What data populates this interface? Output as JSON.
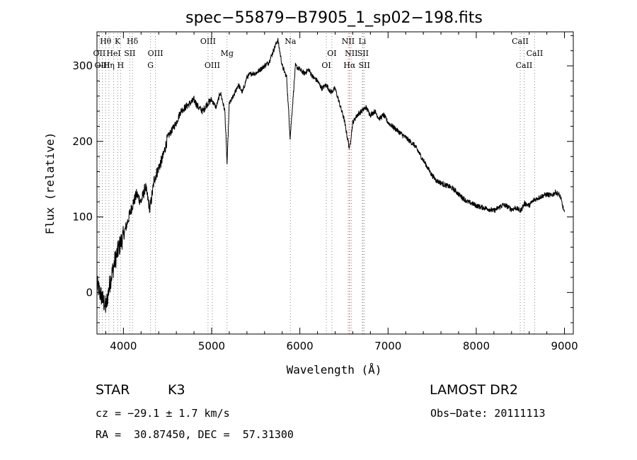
{
  "chart_data": {
    "type": "line",
    "title": "spec−55879−B7905_1_sp02−198.fits",
    "xlabel": "Wavelength (Å)",
    "ylabel": "Flux (relative)",
    "xlim": [
      3700,
      9100
    ],
    "ylim": [
      -55,
      345
    ],
    "x_ticks": [
      4000,
      5000,
      6000,
      7000,
      8000,
      9000
    ],
    "y_ticks": [
      0,
      100,
      200,
      300
    ],
    "grid": false,
    "series": [
      {
        "color": "#000000",
        "x": [
          3700,
          3750,
          3800,
          3850,
          3900,
          3950,
          4000,
          4050,
          4100,
          4150,
          4200,
          4250,
          4300,
          4350,
          4400,
          4450,
          4500,
          4550,
          4600,
          4650,
          4700,
          4750,
          4800,
          4850,
          4900,
          4950,
          5000,
          5050,
          5100,
          5150,
          5175,
          5200,
          5250,
          5300,
          5350,
          5400,
          5450,
          5500,
          5550,
          5600,
          5650,
          5700,
          5750,
          5800,
          5850,
          5890,
          5950,
          6000,
          6050,
          6100,
          6150,
          6200,
          6250,
          6300,
          6350,
          6400,
          6450,
          6500,
          6563,
          6600,
          6650,
          6700,
          6750,
          6800,
          6850,
          6900,
          6950,
          7000,
          7050,
          7100,
          7150,
          7200,
          7250,
          7300,
          7350,
          7400,
          7450,
          7500,
          7550,
          7600,
          7650,
          7700,
          7750,
          7800,
          7850,
          7900,
          7950,
          8000,
          8050,
          8100,
          8150,
          8200,
          8250,
          8300,
          8350,
          8400,
          8450,
          8500,
          8550,
          8600,
          8650,
          8700,
          8750,
          8800,
          8850,
          8900,
          8950,
          9000
        ],
        "y": [
          10,
          -5,
          -20,
          15,
          40,
          60,
          75,
          95,
          115,
          130,
          120,
          140,
          110,
          150,
          165,
          180,
          205,
          215,
          225,
          240,
          245,
          250,
          255,
          245,
          240,
          250,
          255,
          245,
          265,
          240,
          170,
          250,
          260,
          275,
          265,
          285,
          290,
          290,
          295,
          300,
          305,
          320,
          335,
          300,
          285,
          205,
          300,
          295,
          290,
          295,
          285,
          280,
          270,
          275,
          265,
          270,
          250,
          230,
          190,
          225,
          235,
          240,
          245,
          235,
          240,
          230,
          235,
          225,
          220,
          215,
          210,
          205,
          200,
          195,
          185,
          175,
          165,
          155,
          148,
          145,
          142,
          140,
          136,
          130,
          125,
          120,
          118,
          115,
          113,
          112,
          110,
          108,
          112,
          116,
          114,
          110,
          112,
          108,
          118,
          115,
          122,
          125,
          128,
          130,
          128,
          133,
          128,
          105
        ]
      }
    ],
    "annotations": [
      {
        "label": "Hθ",
        "x": 3798,
        "row": 1,
        "color": "#000000"
      },
      {
        "label": "K",
        "x": 3934,
        "row": 1,
        "color": "#000000"
      },
      {
        "label": "Hδ",
        "x": 4102,
        "row": 1,
        "color": "#000000"
      },
      {
        "label": "OII",
        "x": 3727,
        "row": 2,
        "color": "#000000"
      },
      {
        "label": "HeI",
        "x": 3889,
        "row": 2,
        "color": "#000000"
      },
      {
        "label": "SII",
        "x": 4072,
        "row": 2,
        "color": "#000000"
      },
      {
        "label": "OIII",
        "x": 4363,
        "row": 2,
        "color": "#000000"
      },
      {
        "label": "OIII",
        "x": 3760,
        "row": 3,
        "color": "#000000"
      },
      {
        "label": "Hη",
        "x": 3835,
        "row": 3,
        "color": "#000000"
      },
      {
        "label": "H",
        "x": 3968,
        "row": 3,
        "color": "#000000"
      },
      {
        "label": "G",
        "x": 4307,
        "row": 3,
        "color": "#000000"
      },
      {
        "label": "OIII",
        "x": 4959,
        "row": 1,
        "color": "#000000"
      },
      {
        "label": "Mg",
        "x": 5175,
        "row": 2,
        "color": "#000000"
      },
      {
        "label": "OIII",
        "x": 5007,
        "row": 3,
        "color": "#000000"
      },
      {
        "label": "Na",
        "x": 5893,
        "row": 1,
        "color": "#000000"
      },
      {
        "label": "OI",
        "x": 6363,
        "row": 2,
        "color": "#000000"
      },
      {
        "label": "OI",
        "x": 6300,
        "row": 3,
        "color": "#000000"
      },
      {
        "label": "NII",
        "x": 6548,
        "row": 1,
        "color": "#000000"
      },
      {
        "label": "Li",
        "x": 6708,
        "row": 1,
        "color": "#000000"
      },
      {
        "label": "NII",
        "x": 6583,
        "row": 2,
        "color": "#000000"
      },
      {
        "label": "SII",
        "x": 6716,
        "row": 2,
        "color": "#000000"
      },
      {
        "label": "Hα",
        "x": 6563,
        "row": 3,
        "color": "#cc0000"
      },
      {
        "label": "SII",
        "x": 6731,
        "row": 3,
        "color": "#000000"
      },
      {
        "label": "CaII",
        "x": 8498,
        "row": 1,
        "color": "#000000"
      },
      {
        "label": "CaII",
        "x": 8662,
        "row": 2,
        "color": "#000000"
      },
      {
        "label": "CaII",
        "x": 8542,
        "row": 3,
        "color": "#000000"
      }
    ]
  },
  "info": {
    "object_type": "STAR",
    "subclass": "K3",
    "survey": "LAMOST DR2",
    "cz": "cz = −29.1 ± 1.7 km/s",
    "obs_date": "Obs−Date: 20111113",
    "coords": "RA =  30.87450, DEC =  57.31300"
  }
}
